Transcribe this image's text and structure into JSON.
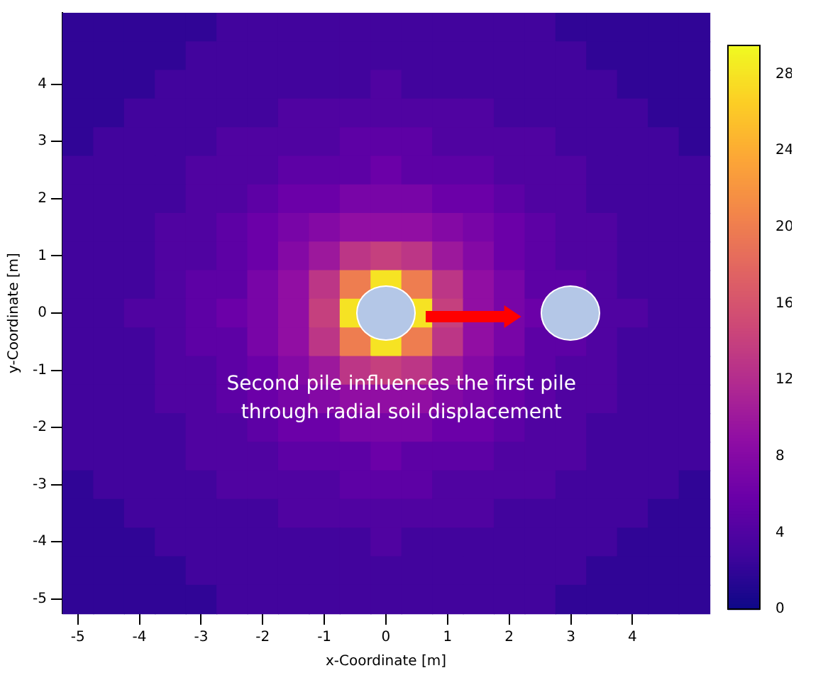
{
  "chart_data": {
    "type": "heatmap",
    "xlabel": "x-Coordinate [m]",
    "ylabel": "y-Coordinate [m]",
    "annotations": [
      "Second pile influences the first pile through radial soil displacement"
    ],
    "categories": [
      "-5",
      null,
      "-4",
      null,
      "-3",
      null,
      "-2",
      null,
      "-1",
      null,
      "0",
      null,
      "1",
      null,
      "2",
      null,
      "3",
      null,
      "4",
      null,
      null
    ],
    "y_categories": [
      null,
      null,
      "4",
      null,
      "3",
      null,
      "2",
      null,
      "1",
      null,
      "0",
      null,
      "-1",
      null,
      "-2",
      null,
      "-3",
      null,
      "-4",
      null,
      "-5"
    ],
    "clim": [
      0,
      29.5
    ],
    "cticks": [
      0,
      4,
      8,
      12,
      16,
      20,
      24,
      28
    ],
    "cells": [
      [
        2,
        2,
        2,
        2,
        2,
        3,
        3,
        3,
        3,
        3,
        3,
        3,
        3,
        3,
        3,
        3,
        2,
        2,
        2,
        2,
        2
      ],
      [
        2,
        2,
        2,
        2,
        3,
        3,
        3,
        3,
        3,
        3,
        3,
        3,
        3,
        3,
        3,
        3,
        3,
        2,
        2,
        2,
        2
      ],
      [
        2,
        2,
        2,
        3,
        3,
        3,
        3,
        3,
        3,
        3,
        4,
        3,
        3,
        3,
        3,
        3,
        3,
        3,
        2,
        2,
        2
      ],
      [
        2,
        2,
        3,
        3,
        3,
        3,
        3,
        4,
        4,
        4,
        4,
        4,
        4,
        4,
        3,
        3,
        3,
        3,
        3,
        2,
        2
      ],
      [
        2,
        3,
        3,
        3,
        3,
        4,
        4,
        4,
        4,
        5,
        5,
        5,
        4,
        4,
        4,
        4,
        3,
        3,
        3,
        3,
        2
      ],
      [
        3,
        3,
        3,
        3,
        4,
        4,
        4,
        5,
        5,
        5,
        6,
        5,
        5,
        5,
        4,
        4,
        4,
        3,
        3,
        3,
        3
      ],
      [
        3,
        3,
        3,
        3,
        4,
        4,
        5,
        6,
        6,
        7,
        7,
        7,
        6,
        6,
        5,
        4,
        4,
        3,
        3,
        3,
        3
      ],
      [
        3,
        3,
        3,
        4,
        4,
        5,
        6,
        7,
        8,
        9,
        9,
        9,
        8,
        7,
        6,
        5,
        4,
        4,
        3,
        3,
        3
      ],
      [
        3,
        3,
        3,
        4,
        4,
        5,
        6,
        8,
        10,
        13,
        14,
        13,
        10,
        8,
        6,
        5,
        4,
        4,
        3,
        3,
        3
      ],
      [
        3,
        3,
        3,
        4,
        5,
        5,
        7,
        9,
        13,
        20,
        28,
        20,
        13,
        9,
        7,
        5,
        5,
        4,
        3,
        3,
        3
      ],
      [
        3,
        3,
        4,
        4,
        5,
        6,
        7,
        9,
        14,
        28,
        null,
        28,
        14,
        9,
        7,
        6,
        null,
        4,
        4,
        3,
        3
      ],
      [
        3,
        3,
        3,
        4,
        5,
        5,
        7,
        9,
        13,
        20,
        28,
        20,
        13,
        9,
        7,
        5,
        5,
        4,
        3,
        3,
        3
      ],
      [
        3,
        3,
        3,
        4,
        4,
        5,
        6,
        8,
        10,
        13,
        14,
        13,
        10,
        8,
        6,
        5,
        4,
        4,
        3,
        3,
        3
      ],
      [
        3,
        3,
        3,
        4,
        4,
        5,
        6,
        7,
        8,
        9,
        9,
        9,
        8,
        7,
        6,
        5,
        4,
        4,
        3,
        3,
        3
      ],
      [
        3,
        3,
        3,
        3,
        4,
        4,
        5,
        6,
        6,
        7,
        7,
        7,
        6,
        6,
        5,
        4,
        4,
        3,
        3,
        3,
        3
      ],
      [
        3,
        3,
        3,
        3,
        4,
        4,
        4,
        5,
        5,
        5,
        6,
        5,
        5,
        5,
        4,
        4,
        4,
        3,
        3,
        3,
        3
      ],
      [
        2,
        3,
        3,
        3,
        3,
        4,
        4,
        4,
        4,
        5,
        5,
        5,
        4,
        4,
        4,
        4,
        3,
        3,
        3,
        3,
        2
      ],
      [
        2,
        2,
        3,
        3,
        3,
        3,
        3,
        4,
        4,
        4,
        4,
        4,
        4,
        4,
        3,
        3,
        3,
        3,
        3,
        2,
        2
      ],
      [
        2,
        2,
        2,
        3,
        3,
        3,
        3,
        3,
        3,
        3,
        4,
        3,
        3,
        3,
        3,
        3,
        3,
        3,
        2,
        2,
        2
      ],
      [
        2,
        2,
        2,
        2,
        3,
        3,
        3,
        3,
        3,
        3,
        3,
        3,
        3,
        3,
        3,
        3,
        3,
        2,
        2,
        2,
        2
      ],
      [
        2,
        2,
        2,
        2,
        2,
        3,
        3,
        3,
        3,
        3,
        3,
        3,
        3,
        3,
        3,
        3,
        2,
        2,
        2,
        2,
        2
      ]
    ]
  }
}
